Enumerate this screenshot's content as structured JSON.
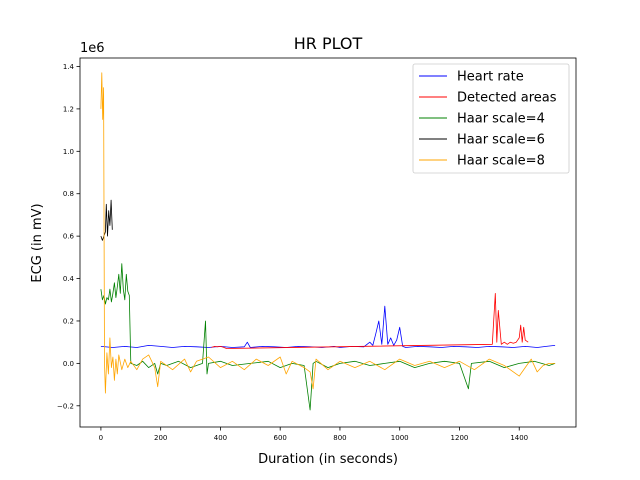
{
  "chart_data": {
    "type": "line",
    "title": "HR PLOT",
    "xlabel": "Duration (in seconds)",
    "ylabel": "ECG (in mV)",
    "y_offset_label": "1e6",
    "xlim": [
      -70,
      1590
    ],
    "ylim": [
      -0.3,
      1.44
    ],
    "xticks": [
      0,
      200,
      400,
      600,
      800,
      1000,
      1200,
      1400
    ],
    "yticks": [
      -0.2,
      0.0,
      0.2,
      0.4,
      0.6,
      0.8,
      1.0,
      1.2,
      1.4
    ],
    "ytick_labels": [
      "−0.2",
      "0.0",
      "0.2",
      "0.4",
      "0.6",
      "0.8",
      "1.0",
      "1.2",
      "1.4"
    ],
    "grid": false,
    "legend_position": "top-right",
    "series": [
      {
        "name": "Heart rate",
        "color": "#0000ff",
        "x": [
          0,
          40,
          80,
          120,
          160,
          200,
          240,
          280,
          320,
          360,
          400,
          440,
          480,
          490,
          500,
          540,
          580,
          620,
          660,
          700,
          740,
          780,
          800,
          840,
          880,
          900,
          910,
          920,
          930,
          940,
          950,
          960,
          970,
          980,
          990,
          1000,
          1010,
          1020,
          1060,
          1100,
          1140,
          1180,
          1220,
          1260,
          1300,
          1340,
          1380,
          1420,
          1460,
          1490,
          1520
        ],
        "y": [
          0.08,
          0.075,
          0.08,
          0.075,
          0.085,
          0.08,
          0.075,
          0.08,
          0.078,
          0.075,
          0.08,
          0.075,
          0.078,
          0.1,
          0.075,
          0.08,
          0.078,
          0.075,
          0.08,
          0.078,
          0.075,
          0.08,
          0.075,
          0.08,
          0.078,
          0.1,
          0.085,
          0.14,
          0.2,
          0.09,
          0.27,
          0.09,
          0.12,
          0.085,
          0.11,
          0.17,
          0.08,
          0.075,
          0.08,
          0.078,
          0.075,
          0.08,
          0.078,
          0.075,
          0.08,
          0.078,
          0.075,
          0.08,
          0.075,
          0.08,
          0.085
        ]
      },
      {
        "name": "Detected areas",
        "color": "#ff0000",
        "x": [
          370,
          380,
          390,
          400,
          410,
          420,
          1310,
          1320,
          1325,
          1330,
          1340,
          1350,
          1360,
          1370,
          1380,
          1390,
          1400,
          1405,
          1410,
          1415,
          1420,
          1430
        ],
        "y": [
          0.075,
          0.08,
          0.078,
          0.08,
          0.076,
          0.07,
          0.09,
          0.33,
          0.1,
          0.25,
          0.09,
          0.1,
          0.09,
          0.1,
          0.095,
          0.1,
          0.12,
          0.18,
          0.1,
          0.17,
          0.11,
          0.1
        ]
      },
      {
        "name": "Haar scale=4",
        "color": "#008000",
        "x": [
          0,
          5,
          10,
          15,
          20,
          25,
          30,
          35,
          40,
          45,
          50,
          55,
          60,
          65,
          70,
          75,
          80,
          85,
          90,
          95,
          100,
          120,
          140,
          160,
          180,
          190,
          200,
          220,
          260,
          300,
          340,
          350,
          355,
          360,
          400,
          440,
          500,
          560,
          600,
          640,
          680,
          700,
          710,
          720,
          760,
          800,
          850,
          900,
          950,
          1000,
          1050,
          1100,
          1150,
          1200,
          1220,
          1230,
          1240,
          1300,
          1350,
          1400,
          1450,
          1500,
          1520
        ],
        "y": [
          0.35,
          0.3,
          0.32,
          0.28,
          0.31,
          0.3,
          0.35,
          0.29,
          0.33,
          0.38,
          0.31,
          0.36,
          0.42,
          0.33,
          0.47,
          0.35,
          0.3,
          0.42,
          0.34,
          0.32,
          0.0,
          -0.01,
          0.01,
          -0.02,
          0.0,
          -0.05,
          0.0,
          -0.01,
          0.01,
          -0.02,
          0.0,
          0.2,
          -0.05,
          0.0,
          0.01,
          -0.01,
          0.0,
          0.01,
          -0.02,
          0.0,
          -0.01,
          -0.22,
          0.0,
          0.01,
          -0.02,
          0.0,
          0.01,
          -0.01,
          0.0,
          0.01,
          -0.02,
          0.0,
          0.01,
          0.0,
          -0.08,
          -0.12,
          0.0,
          0.01,
          -0.02,
          0.0,
          0.01,
          -0.01,
          0.0
        ]
      },
      {
        "name": "Haar scale=6",
        "color": "#000000",
        "x": [
          0,
          5,
          10,
          15,
          18,
          22,
          26,
          30,
          34,
          38
        ],
        "y": [
          0.6,
          0.58,
          0.6,
          0.62,
          0.75,
          0.6,
          0.72,
          0.65,
          0.77,
          0.63
        ]
      },
      {
        "name": "Haar scale=8",
        "color": "#ffa500",
        "x": [
          0,
          3,
          6,
          9,
          12,
          15,
          20,
          25,
          30,
          35,
          40,
          45,
          50,
          55,
          60,
          70,
          80,
          90,
          100,
          120,
          140,
          160,
          180,
          190,
          200,
          240,
          280,
          300,
          320,
          360,
          400,
          440,
          480,
          520,
          560,
          600,
          620,
          640,
          680,
          700,
          710,
          720,
          760,
          800,
          850,
          900,
          950,
          1000,
          1050,
          1100,
          1150,
          1200,
          1250,
          1300,
          1350,
          1400,
          1420,
          1440,
          1460,
          1480,
          1500,
          1520
        ],
        "y": [
          1.2,
          1.37,
          1.15,
          1.3,
          0.0,
          -0.14,
          0.05,
          -0.05,
          0.12,
          -0.02,
          0.03,
          -0.08,
          0.02,
          -0.05,
          0.04,
          -0.03,
          0.02,
          -0.02,
          0.01,
          -0.03,
          0.02,
          0.04,
          -0.02,
          -0.11,
          0.01,
          -0.03,
          0.02,
          -0.04,
          0.01,
          0.03,
          -0.02,
          0.01,
          -0.03,
          0.02,
          -0.01,
          0.03,
          -0.05,
          0.01,
          -0.02,
          -0.04,
          -0.12,
          0.02,
          -0.03,
          0.01,
          -0.02,
          0.01,
          -0.03,
          0.02,
          -0.01,
          0.01,
          -0.02,
          0.01,
          -0.03,
          0.02,
          -0.01,
          -0.06,
          -0.02,
          0.02,
          -0.04,
          -0.01,
          0.0,
          0.0
        ]
      }
    ]
  }
}
